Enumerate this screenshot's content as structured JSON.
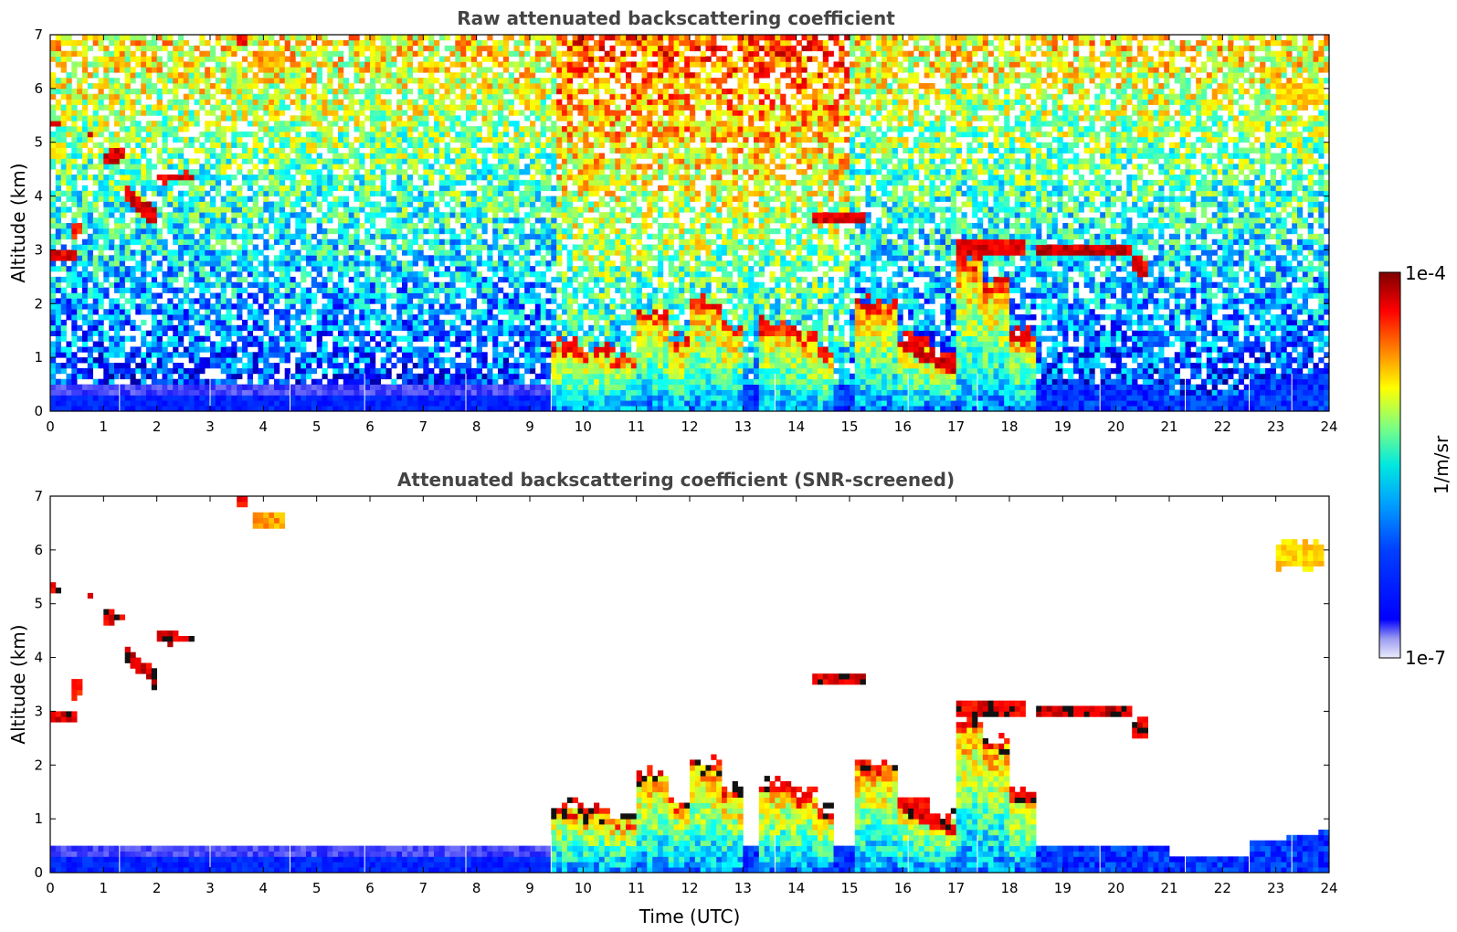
{
  "chart_data": [
    {
      "type": "heatmap",
      "title": "Raw attenuated backscattering coefficient",
      "xlabel": "",
      "ylabel": "Altitude (km)",
      "xlim": [
        0,
        24
      ],
      "ylim": [
        0,
        7
      ],
      "xticks": [
        "0",
        "1",
        "2",
        "3",
        "4",
        "5",
        "6",
        "7",
        "8",
        "9",
        "10",
        "11",
        "12",
        "13",
        "14",
        "15",
        "16",
        "17",
        "18",
        "19",
        "20",
        "21",
        "22",
        "23",
        "24"
      ],
      "yticks": [
        "0",
        "1",
        "2",
        "3",
        "4",
        "5",
        "6",
        "7"
      ],
      "screened": false,
      "features": [
        {
          "name": "boundary-layer",
          "x": [
            0,
            24
          ],
          "top_km": 0.5,
          "level": 0.15
        },
        {
          "name": "low-cloud-complex",
          "x": [
            10,
            18.5
          ],
          "base_km": 0,
          "top_km": 2.2,
          "level": 0.55
        },
        {
          "name": "cloud-layer-19-20",
          "x": [
            18.5,
            20.4
          ],
          "alt_km": 3.0,
          "level": 0.98
        },
        {
          "name": "elevated-cloud-17-18",
          "x": [
            17.0,
            18.3
          ],
          "alt_km": 3.0,
          "level": 0.95
        },
        {
          "name": "cirrus-0h",
          "x": [
            0,
            0.5
          ],
          "alt_km": 2.9,
          "level": 0.95
        },
        {
          "name": "cirrus-1-2h",
          "x": [
            1.0,
            2.8
          ],
          "alt_km": 4.3,
          "level": 0.95
        },
        {
          "name": "cirrus-14h",
          "x": [
            14.3,
            15.3
          ],
          "alt_km": 3.6,
          "level": 0.95
        },
        {
          "name": "cirrus-4h",
          "x": [
            3.8,
            4.4
          ],
          "alt_km": 6.6,
          "level": 0.8
        },
        {
          "name": "cirrus-23h",
          "x": [
            23.0,
            23.9
          ],
          "alt_km": 6.0,
          "level": 0.72
        }
      ]
    },
    {
      "type": "heatmap",
      "title": "Attenuated backscattering coefficient (SNR-screened)",
      "xlabel": "Time (UTC)",
      "ylabel": "Altitude (km)",
      "xlim": [
        0,
        24
      ],
      "ylim": [
        0,
        7
      ],
      "xticks": [
        "0",
        "1",
        "2",
        "3",
        "4",
        "5",
        "6",
        "7",
        "8",
        "9",
        "10",
        "11",
        "12",
        "13",
        "14",
        "15",
        "16",
        "17",
        "18",
        "19",
        "20",
        "21",
        "22",
        "23",
        "24"
      ],
      "yticks": [
        "0",
        "1",
        "2",
        "3",
        "4",
        "5",
        "6",
        "7"
      ],
      "screened": true
    }
  ],
  "colorbar": {
    "max_label": "1e-4",
    "min_label": "1e-7",
    "units_label": "1/m/sr",
    "scale": "log"
  },
  "colors": {
    "text": "#000000",
    "title": "#444444",
    "colormap": [
      "#00007f",
      "#0000ff",
      "#007fff",
      "#00ffff",
      "#7fff7f",
      "#ffff00",
      "#ff7f00",
      "#ff0000",
      "#7f0000"
    ]
  }
}
